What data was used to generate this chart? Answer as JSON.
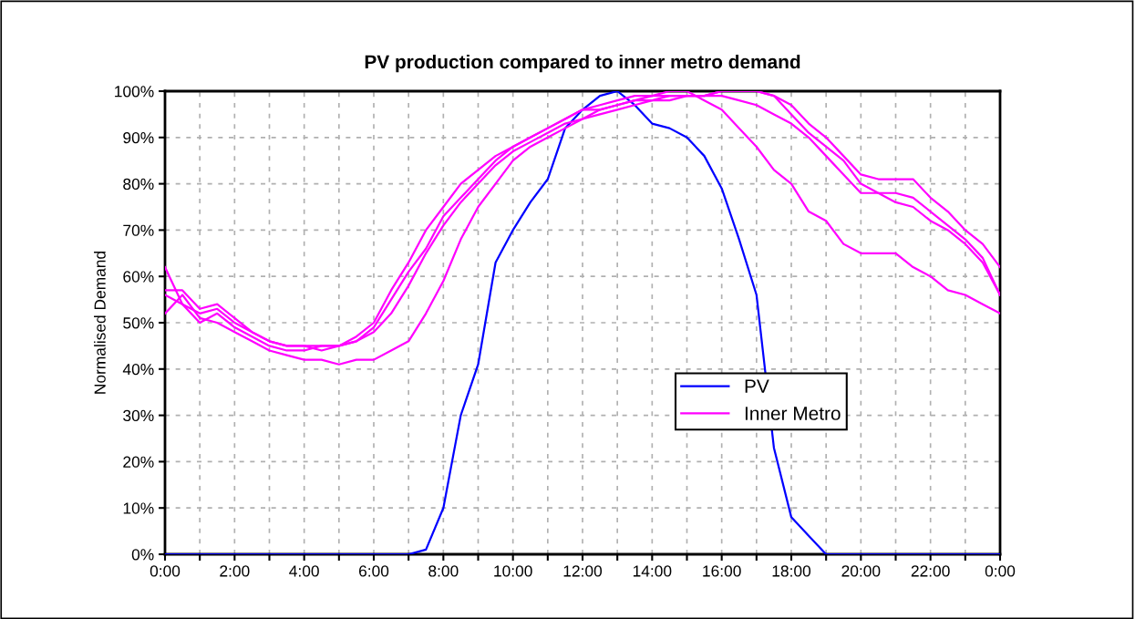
{
  "chart_data": {
    "type": "line",
    "title": "PV production compared to inner metro demand",
    "ylabel": "Normalised Demand",
    "x": [
      0,
      0.5,
      1,
      1.5,
      2,
      2.5,
      3,
      3.5,
      4,
      4.5,
      5,
      5.5,
      6,
      6.5,
      7,
      7.5,
      8,
      8.5,
      9,
      9.5,
      10,
      10.5,
      11,
      11.5,
      12,
      12.5,
      13,
      13.5,
      14,
      14.5,
      15,
      15.5,
      16,
      16.5,
      17,
      17.5,
      18,
      18.5,
      19,
      19.5,
      20,
      20.5,
      21,
      21.5,
      22,
      22.5,
      23,
      23.5,
      24
    ],
    "series": [
      {
        "name": "PV",
        "color": "#0000ff",
        "values": [
          0,
          0,
          0,
          0,
          0,
          0,
          0,
          0,
          0,
          0,
          0,
          0,
          0,
          0,
          0,
          1,
          10,
          30,
          41,
          63,
          70,
          76,
          81,
          92,
          96,
          99,
          100,
          97,
          93,
          92,
          90,
          86,
          79,
          68,
          56,
          23,
          8,
          4,
          0,
          0,
          0,
          0,
          0,
          0,
          0,
          0,
          0,
          0,
          0
        ]
      },
      {
        "name": "Inner Metro",
        "color": "#ff00ff",
        "values": [
          62,
          54,
          52,
          53,
          50,
          48,
          46,
          45,
          45,
          44,
          45,
          46,
          49,
          55,
          61,
          66,
          73,
          77,
          81,
          85,
          88,
          90,
          92,
          94,
          96,
          97,
          98,
          99,
          99,
          100,
          100,
          98,
          96,
          92,
          88,
          83,
          80,
          74,
          72,
          67,
          65,
          65,
          65,
          62,
          60,
          57,
          56,
          54,
          52
        ]
      },
      {
        "color": "#ff00ff",
        "values": [
          57,
          57,
          53,
          54,
          51,
          48,
          46,
          45,
          45,
          45,
          45,
          46,
          48,
          52,
          58,
          65,
          71,
          76,
          80,
          84,
          87,
          89,
          91,
          93,
          94,
          96,
          97,
          98,
          98,
          99,
          99,
          99,
          100,
          100,
          100,
          99,
          97,
          93,
          90,
          86,
          82,
          81,
          81,
          81,
          77,
          74,
          70,
          67,
          62
        ]
      },
      {
        "color": "#ff00ff",
        "values": [
          56,
          54,
          50,
          52,
          49,
          47,
          45,
          44,
          44,
          45,
          45,
          47,
          50,
          57,
          63,
          70,
          75,
          80,
          83,
          86,
          88,
          90,
          92,
          94,
          96,
          96,
          97,
          98,
          99,
          99,
          99,
          99,
          100,
          100,
          100,
          99,
          95,
          91,
          88,
          85,
          80,
          78,
          78,
          77,
          74,
          71,
          68,
          64,
          56
        ]
      },
      {
        "color": "#ff00ff",
        "values": [
          52,
          56,
          51,
          50,
          48,
          46,
          44,
          43,
          42,
          42,
          41,
          42,
          42,
          44,
          46,
          52,
          59,
          68,
          75,
          80,
          85,
          88,
          90,
          92,
          94,
          95,
          96,
          97,
          98,
          98,
          99,
          99,
          99,
          98,
          97,
          95,
          93,
          90,
          86,
          82,
          78,
          78,
          76,
          75,
          72,
          70,
          67,
          63,
          56
        ]
      }
    ],
    "xlim": [
      0,
      24
    ],
    "xticks": [
      {
        "value": 0,
        "label": "0:00"
      },
      {
        "value": 1,
        "label": null
      },
      {
        "value": 2,
        "label": "2:00"
      },
      {
        "value": 3,
        "label": null
      },
      {
        "value": 4,
        "label": "4:00"
      },
      {
        "value": 5,
        "label": null
      },
      {
        "value": 6,
        "label": "6:00"
      },
      {
        "value": 7,
        "label": null
      },
      {
        "value": 8,
        "label": "8:00"
      },
      {
        "value": 9,
        "label": null
      },
      {
        "value": 10,
        "label": "10:00"
      },
      {
        "value": 11,
        "label": null
      },
      {
        "value": 12,
        "label": "12:00"
      },
      {
        "value": 13,
        "label": null
      },
      {
        "value": 14,
        "label": "14:00"
      },
      {
        "value": 15,
        "label": null
      },
      {
        "value": 16,
        "label": "16:00"
      },
      {
        "value": 17,
        "label": null
      },
      {
        "value": 18,
        "label": "18:00"
      },
      {
        "value": 19,
        "label": null
      },
      {
        "value": 20,
        "label": "20:00"
      },
      {
        "value": 21,
        "label": null
      },
      {
        "value": 22,
        "label": "22:00"
      },
      {
        "value": 23,
        "label": null
      },
      {
        "value": 24,
        "label": "0:00"
      }
    ],
    "ylim": [
      0,
      100
    ],
    "yticks": [
      {
        "value": 0,
        "label": "0%"
      },
      {
        "value": 10,
        "label": "10%"
      },
      {
        "value": 20,
        "label": "20%"
      },
      {
        "value": 30,
        "label": "30%"
      },
      {
        "value": 40,
        "label": "40%"
      },
      {
        "value": 50,
        "label": "50%"
      },
      {
        "value": 60,
        "label": "60%"
      },
      {
        "value": 70,
        "label": "70%"
      },
      {
        "value": 80,
        "label": "80%"
      },
      {
        "value": 90,
        "label": "90%"
      },
      {
        "value": 100,
        "label": "100%"
      }
    ],
    "grid": true,
    "legend": "right",
    "marker": "none",
    "line_style": "solid"
  }
}
